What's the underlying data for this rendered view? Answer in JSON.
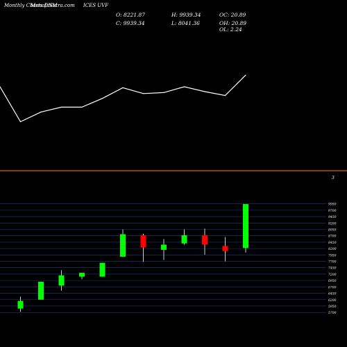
{
  "header": {
    "site_text": "MunafaSutra.com",
    "watermark": "Monthly Charts DNM",
    "symbol": "ICES UVF"
  },
  "ohlc": {
    "open": "O: 8221.87",
    "high": "H: 9939.34",
    "oc": "OC: 20.89",
    "close": "C: 9939.34",
    "low": "L: 8041.36",
    "oh": "OH: 20.89",
    "ol": "OL: 2.24"
  },
  "divider_label": "3",
  "colors": {
    "background": "#000000",
    "up": "#00ff00",
    "down": "#ff0000",
    "wick": "#ffffff",
    "grid": "#1e3a8a",
    "divider": "#ff8800",
    "line": "#ffffff"
  },
  "chart_data": [
    {
      "type": "line",
      "x": [
        1,
        2,
        3,
        4,
        5,
        6,
        7,
        8,
        9,
        10,
        11,
        12,
        13
      ],
      "values": [
        5.0,
        1.4,
        2.4,
        2.9,
        2.9,
        3.8,
        4.9,
        4.3,
        4.4,
        5.0,
        4.5,
        4.1,
        6.2
      ],
      "ylim": [
        0,
        10
      ]
    },
    {
      "type": "candlestick",
      "y_ticks": [
        5700,
        5950,
        6200,
        6450,
        6700,
        6950,
        7200,
        7450,
        7700,
        7950,
        8200,
        8450,
        8700,
        8950,
        9200,
        9450,
        9700,
        9950
      ],
      "y_tick_labels": [
        "5700",
        "5950",
        "6200",
        "6450",
        "6700",
        "6950",
        "7200",
        "7450",
        "7700",
        "7950",
        "8200",
        "8450",
        "8700",
        "8950",
        "9200",
        "9450",
        "9700",
        "9950"
      ],
      "ylim": [
        5650,
        10050
      ],
      "candles": [
        {
          "open": 5850,
          "high": 6320,
          "low": 5720,
          "close": 6150
        },
        {
          "open": 6200,
          "high": 6900,
          "low": 6200,
          "close": 6900
        },
        {
          "open": 6750,
          "high": 7350,
          "low": 6550,
          "close": 7150
        },
        {
          "open": 7100,
          "high": 7250,
          "low": 7000,
          "close": 7250
        },
        {
          "open": 7100,
          "high": 7640,
          "low": 7100,
          "close": 7640
        },
        {
          "open": 7880,
          "high": 8950,
          "low": 7880,
          "close": 8760
        },
        {
          "open": 8720,
          "high": 8780,
          "low": 7680,
          "close": 8240
        },
        {
          "open": 8150,
          "high": 8570,
          "low": 7750,
          "close": 8350
        },
        {
          "open": 8400,
          "high": 8950,
          "low": 8350,
          "close": 8720
        },
        {
          "open": 8720,
          "high": 8980,
          "low": 7960,
          "close": 8350
        },
        {
          "open": 8300,
          "high": 8650,
          "low": 7700,
          "close": 8100
        },
        {
          "open": 8221.87,
          "high": 9939.34,
          "low": 8041.36,
          "close": 9939.34
        }
      ]
    }
  ]
}
